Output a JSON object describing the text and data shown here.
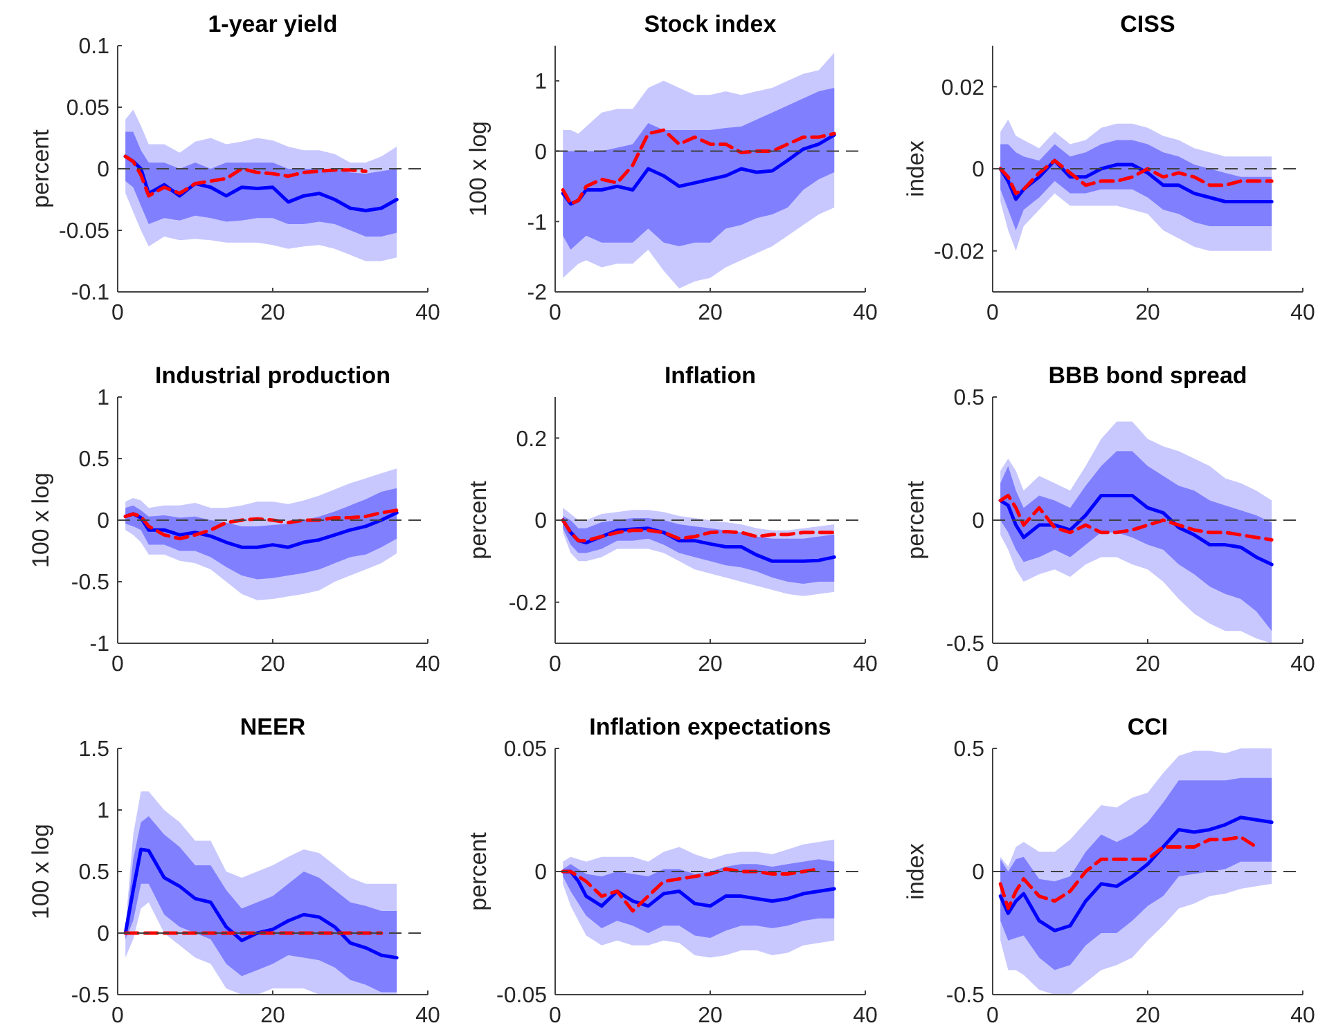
{
  "chart_data": [
    {
      "type": "line",
      "title": "1-year yield",
      "ylabel": "percent",
      "xlim": [
        0,
        40
      ],
      "xticks": [
        0,
        20,
        40
      ],
      "ylim": [
        -0.1,
        0.1
      ],
      "yticks": [
        -0.1,
        -0.05,
        0,
        0.05,
        0.1
      ],
      "x": [
        1,
        2,
        3,
        4,
        6,
        8,
        10,
        12,
        14,
        16,
        18,
        20,
        22,
        24,
        26,
        28,
        30,
        32,
        34,
        36
      ],
      "ref_lines": [
        {
          "axis": "y",
          "value": 0,
          "color": "#404040",
          "line_style": "dashed"
        }
      ],
      "series": [
        {
          "type": "line",
          "color": "#c8c8ff",
          "values": [
            null,
            null,
            null,
            null,
            null,
            null,
            null,
            null,
            null,
            null,
            null,
            null,
            null,
            null,
            null,
            null,
            null,
            null,
            null,
            null
          ],
          "lower": [
            -0.02,
            -0.035,
            -0.05,
            -0.063,
            -0.055,
            -0.058,
            -0.057,
            -0.058,
            -0.06,
            -0.06,
            -0.06,
            -0.062,
            -0.065,
            -0.063,
            -0.062,
            -0.065,
            -0.07,
            -0.075,
            -0.075,
            -0.072
          ],
          "upper": [
            0.04,
            0.048,
            0.035,
            0.02,
            0.02,
            0.013,
            0.022,
            0.025,
            0.02,
            0.022,
            0.025,
            0.023,
            0.018,
            0.015,
            0.015,
            0.012,
            0.005,
            0.005,
            0.01,
            0.018
          ]
        },
        {
          "type": "line",
          "color": "#0000ff",
          "line_style": "solid",
          "values": [
            0.01,
            0.006,
            0.0,
            -0.02,
            -0.013,
            -0.022,
            -0.012,
            -0.015,
            -0.022,
            -0.015,
            -0.016,
            -0.015,
            -0.027,
            -0.022,
            -0.02,
            -0.025,
            -0.032,
            -0.034,
            -0.032,
            -0.025
          ],
          "lower": [
            -0.01,
            -0.015,
            -0.03,
            -0.045,
            -0.04,
            -0.042,
            -0.038,
            -0.04,
            -0.043,
            -0.042,
            -0.04,
            -0.04,
            -0.045,
            -0.045,
            -0.043,
            -0.045,
            -0.05,
            -0.055,
            -0.055,
            -0.052
          ],
          "upper": [
            0.03,
            0.03,
            0.015,
            0.005,
            0.005,
            0.0,
            0.005,
            0.0,
            0.005,
            0.005,
            0.005,
            0.005,
            0.0,
            0.0,
            0.0,
            0.0,
            -0.003,
            -0.004,
            -0.002,
            0.0
          ]
        },
        {
          "type": "line",
          "color": "#ff0000",
          "line_style": "dashed",
          "values": [
            0.01,
            0.006,
            -0.005,
            -0.022,
            -0.015,
            -0.02,
            -0.012,
            -0.01,
            -0.008,
            0.0,
            -0.003,
            -0.004,
            -0.006,
            -0.003,
            -0.002,
            -0.001,
            -0.001,
            -0.002,
            null,
            null
          ]
        }
      ]
    },
    {
      "type": "line",
      "title": "Stock index",
      "ylabel": "100 x log",
      "xlim": [
        0,
        40
      ],
      "xticks": [
        0,
        20,
        40
      ],
      "ylim": [
        -2,
        1.5
      ],
      "yticks": [
        -2,
        -1,
        0,
        1
      ],
      "x": [
        1,
        2,
        3,
        4,
        6,
        8,
        10,
        12,
        14,
        16,
        18,
        20,
        22,
        24,
        26,
        28,
        30,
        32,
        34,
        36
      ],
      "ref_lines": [
        {
          "axis": "y",
          "value": 0,
          "color": "#404040",
          "line_style": "dashed"
        }
      ],
      "series": [
        {
          "type": "line",
          "color": "#c8c8ff",
          "values": [
            null,
            null,
            null,
            null,
            null,
            null,
            null,
            null,
            null,
            null,
            null,
            null,
            null,
            null,
            null,
            null,
            null,
            null,
            null,
            null
          ],
          "lower": [
            -1.8,
            -1.7,
            -1.6,
            -1.55,
            -1.65,
            -1.6,
            -1.6,
            -1.4,
            -1.7,
            -1.95,
            -1.85,
            -1.8,
            -1.65,
            -1.55,
            -1.45,
            -1.35,
            -1.2,
            -1.05,
            -0.9,
            -0.8
          ],
          "upper": [
            0.3,
            0.3,
            0.25,
            0.35,
            0.55,
            0.6,
            0.6,
            0.9,
            1.0,
            0.9,
            0.8,
            0.8,
            0.85,
            0.8,
            0.85,
            0.9,
            1.0,
            1.1,
            1.15,
            1.4
          ]
        },
        {
          "type": "line",
          "color": "#0000ff",
          "line_style": "solid",
          "values": [
            -0.6,
            -0.75,
            -0.7,
            -0.55,
            -0.55,
            -0.5,
            -0.55,
            -0.25,
            -0.35,
            -0.5,
            -0.45,
            -0.4,
            -0.35,
            -0.25,
            -0.3,
            -0.28,
            -0.13,
            0.03,
            0.1,
            0.23
          ],
          "lower": [
            -1.2,
            -1.4,
            -1.3,
            -1.2,
            -1.3,
            -1.3,
            -1.3,
            -1.1,
            -1.3,
            -1.35,
            -1.3,
            -1.3,
            -1.1,
            -1.05,
            -0.95,
            -0.9,
            -0.8,
            -0.55,
            -0.4,
            -0.3
          ],
          "upper": [
            0.0,
            0.0,
            0.0,
            0.0,
            0.0,
            0.05,
            0.1,
            0.4,
            0.3,
            0.3,
            0.3,
            0.3,
            0.33,
            0.35,
            0.45,
            0.55,
            0.65,
            0.75,
            0.85,
            0.9
          ]
        },
        {
          "type": "line",
          "color": "#ff0000",
          "line_style": "dashed",
          "values": [
            -0.55,
            -0.75,
            -0.7,
            -0.5,
            -0.4,
            -0.45,
            -0.2,
            0.25,
            0.3,
            0.1,
            0.2,
            0.1,
            0.1,
            -0.02,
            0.0,
            0.0,
            0.1,
            0.2,
            0.2,
            0.25
          ]
        }
      ]
    },
    {
      "type": "line",
      "title": "CISS",
      "ylabel": "index",
      "xlim": [
        0,
        40
      ],
      "xticks": [
        0,
        20,
        40
      ],
      "ylim": [
        -0.03,
        0.03
      ],
      "yticks": [
        -0.02,
        0,
        0.02
      ],
      "x": [
        1,
        2,
        3,
        4,
        6,
        8,
        10,
        12,
        14,
        16,
        18,
        20,
        22,
        24,
        26,
        28,
        30,
        32,
        34,
        36
      ],
      "ref_lines": [
        {
          "axis": "y",
          "value": 0,
          "color": "#404040",
          "line_style": "dashed"
        }
      ],
      "series": [
        {
          "type": "line",
          "color": "#c8c8ff",
          "values": [
            null,
            null,
            null,
            null,
            null,
            null,
            null,
            null,
            null,
            null,
            null,
            null,
            null,
            null,
            null,
            null,
            null,
            null,
            null,
            null
          ],
          "lower": [
            -0.008,
            -0.015,
            -0.02,
            -0.014,
            -0.01,
            -0.006,
            -0.009,
            -0.009,
            -0.009,
            -0.009,
            -0.01,
            -0.011,
            -0.015,
            -0.017,
            -0.019,
            -0.02,
            -0.02,
            -0.02,
            -0.02,
            -0.02
          ],
          "upper": [
            0.009,
            0.012,
            0.008,
            0.007,
            0.005,
            0.009,
            0.006,
            0.007,
            0.01,
            0.011,
            0.011,
            0.01,
            0.008,
            0.007,
            0.005,
            0.004,
            0.003,
            0.003,
            0.003,
            0.003
          ]
        },
        {
          "type": "line",
          "color": "#0000ff",
          "line_style": "solid",
          "values": [
            0.0,
            -0.003,
            -0.0074,
            -0.005,
            -0.002,
            0.002,
            -0.002,
            -0.002,
            0.0,
            0.001,
            0.001,
            -0.001,
            -0.004,
            -0.004,
            -0.006,
            -0.007,
            -0.008,
            -0.008,
            -0.008,
            -0.008
          ],
          "lower": [
            -0.005,
            -0.01,
            -0.015,
            -0.01,
            -0.007,
            -0.003,
            -0.006,
            -0.006,
            -0.005,
            -0.005,
            -0.005,
            -0.007,
            -0.01,
            -0.011,
            -0.013,
            -0.014,
            -0.014,
            -0.014,
            -0.014,
            -0.014
          ],
          "upper": [
            0.006,
            0.006,
            0.004,
            0.003,
            0.002,
            0.006,
            0.003,
            0.004,
            0.006,
            0.007,
            0.007,
            0.006,
            0.004,
            0.003,
            0.001,
            0.0,
            -0.001,
            -0.002,
            -0.002,
            -0.002
          ]
        },
        {
          "type": "line",
          "color": "#ff0000",
          "line_style": "dashed",
          "values": [
            0.0,
            -0.002,
            -0.006,
            -0.005,
            -0.001,
            0.002,
            -0.001,
            -0.004,
            -0.003,
            -0.003,
            -0.002,
            0.0,
            -0.002,
            -0.001,
            -0.002,
            -0.004,
            -0.004,
            -0.003,
            -0.003,
            -0.003
          ]
        }
      ]
    },
    {
      "type": "line",
      "title": "Industrial production",
      "ylabel": "100 x log",
      "xlim": [
        0,
        40
      ],
      "xticks": [
        0,
        20,
        40
      ],
      "ylim": [
        -1,
        1
      ],
      "yticks": [
        -1,
        -0.5,
        0,
        0.5,
        1
      ],
      "x": [
        1,
        2,
        3,
        4,
        6,
        8,
        10,
        12,
        14,
        16,
        18,
        20,
        22,
        24,
        26,
        28,
        30,
        32,
        34,
        36
      ],
      "ref_lines": [
        {
          "axis": "y",
          "value": 0,
          "color": "#404040",
          "line_style": "dashed"
        }
      ],
      "series": [
        {
          "type": "line",
          "color": "#c8c8ff",
          "values": [
            null,
            null,
            null,
            null,
            null,
            null,
            null,
            null,
            null,
            null,
            null,
            null,
            null,
            null,
            null,
            null,
            null,
            null,
            null,
            null
          ],
          "lower": [
            -0.08,
            -0.12,
            -0.18,
            -0.28,
            -0.28,
            -0.33,
            -0.35,
            -0.4,
            -0.5,
            -0.6,
            -0.65,
            -0.64,
            -0.62,
            -0.6,
            -0.57,
            -0.5,
            -0.45,
            -0.4,
            -0.35,
            -0.27
          ],
          "upper": [
            0.15,
            0.18,
            0.16,
            0.1,
            0.12,
            0.12,
            0.14,
            0.1,
            0.1,
            0.12,
            0.15,
            0.15,
            0.13,
            0.16,
            0.2,
            0.25,
            0.3,
            0.34,
            0.38,
            0.42
          ]
        },
        {
          "type": "line",
          "color": "#0000ff",
          "line_style": "solid",
          "values": [
            0.03,
            0.05,
            0.02,
            -0.08,
            -0.08,
            -0.12,
            -0.1,
            -0.13,
            -0.18,
            -0.22,
            -0.22,
            -0.2,
            -0.22,
            -0.18,
            -0.16,
            -0.12,
            -0.08,
            -0.05,
            0.0,
            0.06
          ],
          "lower": [
            -0.03,
            -0.05,
            -0.08,
            -0.2,
            -0.2,
            -0.25,
            -0.25,
            -0.3,
            -0.38,
            -0.45,
            -0.48,
            -0.47,
            -0.45,
            -0.43,
            -0.4,
            -0.35,
            -0.3,
            -0.28,
            -0.22,
            -0.15
          ],
          "upper": [
            0.1,
            0.12,
            0.08,
            0.03,
            0.04,
            0.02,
            0.03,
            0.0,
            -0.02,
            -0.05,
            -0.05,
            -0.04,
            -0.03,
            0.0,
            0.03,
            0.07,
            0.12,
            0.17,
            0.23,
            0.26
          ]
        },
        {
          "type": "line",
          "color": "#ff0000",
          "line_style": "dashed",
          "values": [
            0.03,
            0.05,
            0.03,
            -0.05,
            -0.12,
            -0.15,
            -0.12,
            -0.08,
            -0.02,
            0.0,
            0.01,
            0.0,
            -0.02,
            0.0,
            0.0,
            0.02,
            0.02,
            0.03,
            0.06,
            0.08
          ]
        }
      ]
    },
    {
      "type": "line",
      "title": "Inflation",
      "ylabel": "percent",
      "xlim": [
        0,
        40
      ],
      "xticks": [
        0,
        20,
        40
      ],
      "ylim": [
        -0.3,
        0.3
      ],
      "yticks": [
        -0.2,
        0,
        0.2
      ],
      "x": [
        1,
        2,
        3,
        4,
        6,
        8,
        10,
        12,
        14,
        16,
        18,
        20,
        22,
        24,
        26,
        28,
        30,
        32,
        34,
        36
      ],
      "ref_lines": [
        {
          "axis": "y",
          "value": 0,
          "color": "#404040",
          "line_style": "dashed"
        }
      ],
      "series": [
        {
          "type": "line",
          "color": "#c8c8ff",
          "values": [
            null,
            null,
            null,
            null,
            null,
            null,
            null,
            null,
            null,
            null,
            null,
            null,
            null,
            null,
            null,
            null,
            null,
            null,
            null,
            null
          ],
          "lower": [
            -0.03,
            -0.08,
            -0.1,
            -0.1,
            -0.09,
            -0.07,
            -0.07,
            -0.07,
            -0.08,
            -0.1,
            -0.12,
            -0.13,
            -0.14,
            -0.15,
            -0.16,
            -0.17,
            -0.18,
            -0.185,
            -0.18,
            -0.175
          ],
          "upper": [
            0.03,
            0.015,
            0.0,
            0.0,
            0.015,
            0.02,
            0.025,
            0.025,
            0.02,
            0.01,
            0.005,
            0.0,
            -0.005,
            -0.01,
            -0.02,
            -0.025,
            -0.025,
            -0.02,
            -0.015,
            -0.01
          ]
        },
        {
          "type": "line",
          "color": "#0000ff",
          "line_style": "solid",
          "values": [
            0.0,
            -0.03,
            -0.05,
            -0.055,
            -0.04,
            -0.025,
            -0.022,
            -0.02,
            -0.03,
            -0.05,
            -0.05,
            -0.058,
            -0.065,
            -0.065,
            -0.085,
            -0.1,
            -0.1,
            -0.1,
            -0.098,
            -0.09
          ],
          "lower": [
            -0.02,
            -0.06,
            -0.08,
            -0.08,
            -0.07,
            -0.05,
            -0.05,
            -0.045,
            -0.06,
            -0.08,
            -0.09,
            -0.1,
            -0.11,
            -0.115,
            -0.125,
            -0.14,
            -0.15,
            -0.155,
            -0.15,
            -0.15
          ],
          "upper": [
            0.01,
            0.0,
            -0.02,
            -0.02,
            -0.005,
            0.0,
            0.005,
            0.005,
            0.0,
            -0.01,
            -0.015,
            -0.02,
            -0.025,
            -0.03,
            -0.04,
            -0.045,
            -0.045,
            -0.045,
            -0.04,
            -0.035
          ]
        },
        {
          "type": "line",
          "color": "#ff0000",
          "line_style": "dashed",
          "values": [
            0.0,
            -0.03,
            -0.05,
            -0.05,
            -0.04,
            -0.03,
            -0.025,
            -0.025,
            -0.03,
            -0.045,
            -0.04,
            -0.03,
            -0.028,
            -0.03,
            -0.04,
            -0.035,
            -0.035,
            -0.03,
            -0.03,
            -0.03
          ]
        }
      ]
    },
    {
      "type": "line",
      "title": "BBB bond spread",
      "ylabel": "percent",
      "xlim": [
        0,
        40
      ],
      "xticks": [
        0,
        20,
        40
      ],
      "ylim": [
        -0.5,
        0.5
      ],
      "yticks": [
        -0.5,
        0,
        0.5
      ],
      "x": [
        1,
        2,
        3,
        4,
        6,
        8,
        10,
        12,
        14,
        16,
        18,
        20,
        22,
        24,
        26,
        28,
        30,
        32,
        34,
        36
      ],
      "ref_lines": [
        {
          "axis": "y",
          "value": 0,
          "color": "#404040",
          "line_style": "dashed"
        }
      ],
      "series": [
        {
          "type": "line",
          "color": "#c8c8ff",
          "values": [
            null,
            null,
            null,
            null,
            null,
            null,
            null,
            null,
            null,
            null,
            null,
            null,
            null,
            null,
            null,
            null,
            null,
            null,
            null,
            null
          ],
          "lower": [
            -0.06,
            -0.12,
            -0.2,
            -0.25,
            -0.22,
            -0.2,
            -0.23,
            -0.18,
            -0.15,
            -0.15,
            -0.18,
            -0.2,
            -0.25,
            -0.32,
            -0.38,
            -0.42,
            -0.45,
            -0.45,
            -0.48,
            -0.5
          ],
          "upper": [
            0.2,
            0.25,
            0.2,
            0.12,
            0.18,
            0.15,
            0.12,
            0.22,
            0.33,
            0.4,
            0.4,
            0.33,
            0.3,
            0.28,
            0.25,
            0.22,
            0.17,
            0.15,
            0.12,
            0.08
          ]
        },
        {
          "type": "line",
          "color": "#0000ff",
          "line_style": "solid",
          "values": [
            0.08,
            0.06,
            -0.02,
            -0.07,
            -0.02,
            -0.02,
            -0.04,
            0.02,
            0.1,
            0.1,
            0.1,
            0.05,
            0.03,
            -0.03,
            -0.06,
            -0.1,
            -0.1,
            -0.11,
            -0.15,
            -0.18
          ],
          "lower": [
            0.0,
            -0.05,
            -0.12,
            -0.17,
            -0.15,
            -0.12,
            -0.15,
            -0.1,
            -0.05,
            -0.05,
            -0.07,
            -0.1,
            -0.12,
            -0.18,
            -0.22,
            -0.27,
            -0.3,
            -0.32,
            -0.37,
            -0.45
          ],
          "upper": [
            0.15,
            0.22,
            0.12,
            0.05,
            0.1,
            0.08,
            0.05,
            0.14,
            0.22,
            0.28,
            0.28,
            0.22,
            0.18,
            0.14,
            0.12,
            0.08,
            0.06,
            0.04,
            0.02,
            -0.01
          ]
        },
        {
          "type": "line",
          "color": "#ff0000",
          "line_style": "dashed",
          "values": [
            0.08,
            0.1,
            0.05,
            -0.02,
            0.05,
            -0.03,
            -0.05,
            -0.02,
            -0.05,
            -0.05,
            -0.04,
            -0.02,
            0.0,
            -0.02,
            -0.04,
            -0.05,
            -0.05,
            -0.06,
            -0.07,
            -0.08
          ]
        }
      ]
    },
    {
      "type": "line",
      "title": "NEER",
      "ylabel": "100 x log",
      "xlim": [
        0,
        40
      ],
      "xticks": [
        0,
        20,
        40
      ],
      "ylim": [
        -0.5,
        1.5
      ],
      "yticks": [
        -0.5,
        0,
        0.5,
        1,
        1.5
      ],
      "x": [
        1,
        2,
        3,
        4,
        6,
        8,
        10,
        12,
        14,
        16,
        18,
        20,
        22,
        24,
        26,
        28,
        30,
        32,
        34,
        36
      ],
      "ref_lines": [
        {
          "axis": "y",
          "value": 0,
          "color": "#404040",
          "line_style": "dashed"
        }
      ],
      "series": [
        {
          "type": "line",
          "color": "#c8c8ff",
          "values": [
            null,
            null,
            null,
            null,
            null,
            null,
            null,
            null,
            null,
            null,
            null,
            null,
            null,
            null,
            null,
            null,
            null,
            null,
            null,
            null
          ],
          "lower": [
            -0.2,
            -0.05,
            0.2,
            0.25,
            0.0,
            -0.1,
            -0.2,
            -0.25,
            -0.45,
            -0.5,
            -0.5,
            -0.45,
            -0.45,
            -0.45,
            -0.5,
            -0.5,
            -0.5,
            -0.5,
            -0.5,
            -0.5
          ],
          "upper": [
            0.05,
            0.8,
            1.15,
            1.15,
            1.0,
            0.9,
            0.75,
            0.75,
            0.5,
            0.45,
            0.5,
            0.55,
            0.62,
            0.68,
            0.65,
            0.55,
            0.45,
            0.4,
            0.4,
            0.4
          ]
        },
        {
          "type": "line",
          "color": "#0000ff",
          "line_style": "solid",
          "values": [
            0.0,
            0.35,
            0.68,
            0.67,
            0.45,
            0.38,
            0.28,
            0.25,
            0.05,
            -0.06,
            0.0,
            0.03,
            0.1,
            0.15,
            0.13,
            0.05,
            -0.08,
            -0.12,
            -0.18,
            -0.2
          ],
          "lower": [
            -0.05,
            0.1,
            0.4,
            0.4,
            0.15,
            0.05,
            0.0,
            -0.05,
            -0.25,
            -0.35,
            -0.3,
            -0.25,
            -0.18,
            -0.2,
            -0.22,
            -0.28,
            -0.38,
            -0.42,
            -0.48,
            -0.48
          ],
          "upper": [
            0.0,
            0.6,
            0.9,
            0.95,
            0.8,
            0.7,
            0.55,
            0.55,
            0.35,
            0.2,
            0.25,
            0.3,
            0.4,
            0.5,
            0.45,
            0.35,
            0.25,
            0.22,
            0.18,
            0.18
          ]
        },
        {
          "type": "line",
          "color": "#ff0000",
          "line_style": "dashed",
          "values": [
            0,
            0,
            0,
            0,
            0,
            0,
            0,
            0,
            0,
            0,
            0,
            0,
            0,
            0,
            0,
            0,
            0,
            0,
            0,
            null
          ]
        }
      ]
    },
    {
      "type": "line",
      "title": "Inflation expectations",
      "ylabel": "percent",
      "xlim": [
        0,
        40
      ],
      "xticks": [
        0,
        20,
        40
      ],
      "ylim": [
        -0.05,
        0.05
      ],
      "yticks": [
        -0.05,
        0,
        0.05
      ],
      "x": [
        1,
        2,
        3,
        4,
        6,
        8,
        10,
        12,
        14,
        16,
        18,
        20,
        22,
        24,
        26,
        28,
        30,
        32,
        34,
        36
      ],
      "ref_lines": [
        {
          "axis": "y",
          "value": 0,
          "color": "#404040",
          "line_style": "dashed"
        }
      ],
      "series": [
        {
          "type": "line",
          "color": "#c8c8ff",
          "values": [
            null,
            null,
            null,
            null,
            null,
            null,
            null,
            null,
            null,
            null,
            null,
            null,
            null,
            null,
            null,
            null,
            null,
            null,
            null,
            null
          ],
          "lower": [
            -0.005,
            -0.014,
            -0.02,
            -0.026,
            -0.03,
            -0.028,
            -0.03,
            -0.03,
            -0.028,
            -0.029,
            -0.034,
            -0.035,
            -0.034,
            -0.032,
            -0.032,
            -0.034,
            -0.033,
            -0.03,
            -0.029,
            -0.028
          ],
          "upper": [
            0.004,
            0.006,
            0.005,
            0.004,
            0.006,
            0.006,
            0.006,
            0.004,
            0.008,
            0.01,
            0.007,
            0.005,
            0.007,
            0.008,
            0.008,
            0.007,
            0.009,
            0.011,
            0.012,
            0.013
          ]
        },
        {
          "type": "line",
          "color": "#0000ff",
          "line_style": "solid",
          "values": [
            0,
            0,
            -0.004,
            -0.01,
            -0.014,
            -0.008,
            -0.012,
            -0.014,
            -0.009,
            -0.008,
            -0.013,
            -0.014,
            -0.01,
            -0.01,
            -0.011,
            -0.012,
            -0.011,
            -0.009,
            -0.008,
            -0.007
          ],
          "lower": [
            -0.002,
            -0.008,
            -0.013,
            -0.018,
            -0.023,
            -0.02,
            -0.022,
            -0.025,
            -0.022,
            -0.022,
            -0.026,
            -0.027,
            -0.024,
            -0.022,
            -0.022,
            -0.023,
            -0.022,
            -0.02,
            -0.019,
            -0.019
          ],
          "upper": [
            0.001,
            0.003,
            0.001,
            -0.001,
            -0.002,
            0.0,
            -0.001,
            -0.002,
            0.001,
            0.001,
            -0.001,
            0.0,
            0.002,
            0.003,
            0.003,
            0.002,
            0.003,
            0.004,
            0.005,
            0.004
          ]
        },
        {
          "type": "line",
          "color": "#ff0000",
          "line_style": "dashed",
          "values": [
            0,
            0,
            -0.002,
            -0.004,
            -0.01,
            -0.008,
            -0.016,
            -0.01,
            -0.004,
            -0.003,
            -0.002,
            -0.001,
            0.001,
            0.0,
            0.0,
            -0.001,
            -0.001,
            0.0,
            0.001,
            null
          ]
        }
      ]
    },
    {
      "type": "line",
      "title": "CCI",
      "ylabel": "index",
      "xlim": [
        0,
        40
      ],
      "xticks": [
        0,
        20,
        40
      ],
      "ylim": [
        -0.5,
        0.5
      ],
      "yticks": [
        -0.5,
        0,
        0.5
      ],
      "x": [
        1,
        2,
        3,
        4,
        6,
        8,
        10,
        12,
        14,
        16,
        18,
        20,
        22,
        24,
        26,
        28,
        30,
        32,
        34,
        36
      ],
      "ref_lines": [
        {
          "axis": "y",
          "value": 0,
          "color": "#404040",
          "line_style": "dashed"
        }
      ],
      "series": [
        {
          "type": "line",
          "color": "#c8c8ff",
          "values": [
            null,
            null,
            null,
            null,
            null,
            null,
            null,
            null,
            null,
            null,
            null,
            null,
            null,
            null,
            null,
            null,
            null,
            null,
            null,
            null
          ],
          "lower": [
            -0.28,
            -0.4,
            -0.4,
            -0.42,
            -0.48,
            -0.5,
            -0.5,
            -0.45,
            -0.4,
            -0.38,
            -0.35,
            -0.28,
            -0.22,
            -0.15,
            -0.13,
            -0.1,
            -0.09,
            -0.07,
            -0.06,
            -0.05
          ],
          "upper": [
            0.06,
            0.02,
            0.1,
            0.12,
            0.08,
            0.08,
            0.13,
            0.2,
            0.27,
            0.26,
            0.3,
            0.32,
            0.4,
            0.47,
            0.49,
            0.49,
            0.48,
            0.5,
            0.5,
            0.5
          ]
        },
        {
          "type": "line",
          "color": "#0000ff",
          "line_style": "solid",
          "values": [
            -0.1,
            -0.17,
            -0.12,
            -0.09,
            -0.2,
            -0.24,
            -0.22,
            -0.12,
            -0.05,
            -0.06,
            -0.02,
            0.03,
            0.1,
            0.17,
            0.16,
            0.17,
            0.19,
            0.22,
            0.21,
            0.2
          ],
          "lower": [
            -0.2,
            -0.28,
            -0.27,
            -0.26,
            -0.35,
            -0.4,
            -0.38,
            -0.3,
            -0.25,
            -0.25,
            -0.2,
            -0.14,
            -0.1,
            -0.02,
            -0.01,
            0.0,
            0.01,
            0.04,
            0.04,
            0.04
          ],
          "upper": [
            0.05,
            0.0,
            0.05,
            0.06,
            -0.03,
            -0.04,
            -0.02,
            0.08,
            0.15,
            0.12,
            0.15,
            0.2,
            0.28,
            0.37,
            0.37,
            0.37,
            0.37,
            0.38,
            0.38,
            0.38
          ]
        },
        {
          "type": "line",
          "color": "#ff0000",
          "line_style": "dashed",
          "values": [
            -0.05,
            -0.15,
            -0.08,
            -0.03,
            -0.1,
            -0.12,
            -0.08,
            0.0,
            0.05,
            0.05,
            0.05,
            0.05,
            0.1,
            0.1,
            0.1,
            0.13,
            0.13,
            0.14,
            0.1,
            null
          ]
        }
      ]
    }
  ]
}
